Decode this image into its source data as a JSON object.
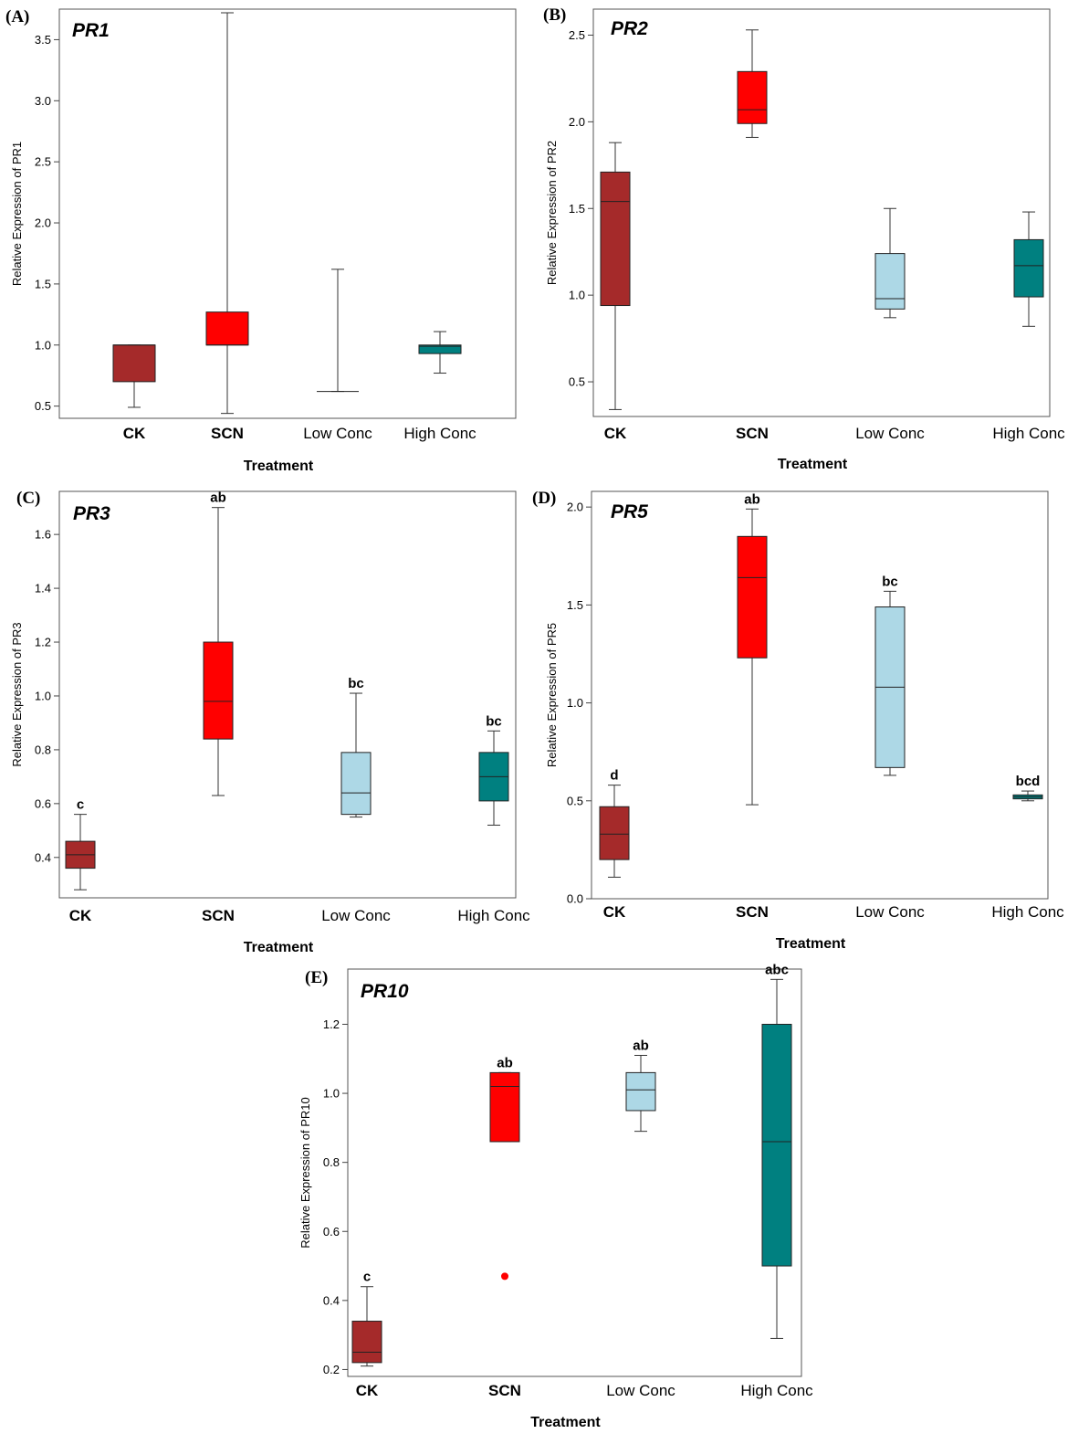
{
  "figure": {
    "xlabel": "Treatment",
    "categories": [
      "CK",
      "SCN",
      "Low Conc",
      "High Conc"
    ],
    "colors": {
      "CK": "#a52a2a",
      "SCN": "#ff0000",
      "Low Conc": "#add8e6",
      "High Conc": "#008080"
    }
  },
  "chart_data": [
    {
      "type": "box",
      "panel": "(A)",
      "title": "PR1",
      "ylabel": "Relative Expression of PR1",
      "xlabel": "Treatment",
      "categories": [
        "CK",
        "SCN",
        "Low Conc",
        "High Conc"
      ],
      "ylim": [
        0.4,
        3.75
      ],
      "yticks": [
        0.5,
        1.0,
        1.5,
        2.0,
        2.5,
        3.0,
        3.5
      ],
      "tick_format": 1,
      "boxes": [
        {
          "category": "CK",
          "min": 0.49,
          "q1": 0.7,
          "median": 1.0,
          "q3": 1.0,
          "max": 1.0
        },
        {
          "category": "SCN",
          "min": 0.44,
          "q1": 1.0,
          "median": 1.0,
          "q3": 1.27,
          "max": 3.72
        },
        {
          "category": "Low Conc",
          "min": 0.62,
          "q1": 0.62,
          "median": 0.62,
          "q3": 0.62,
          "max": 1.62
        },
        {
          "category": "High Conc",
          "min": 0.77,
          "q1": 0.93,
          "median": 0.99,
          "q3": 1.0,
          "max": 1.11
        }
      ],
      "letters": [],
      "outliers": []
    },
    {
      "type": "box",
      "panel": "(B)",
      "title": "PR2",
      "ylabel": "Relative Expression of PR2",
      "xlabel": "Treatment",
      "categories": [
        "CK",
        "SCN",
        "Low Conc",
        "High Conc"
      ],
      "ylim": [
        0.3,
        2.65
      ],
      "yticks": [
        0.5,
        1.0,
        1.5,
        2.0,
        2.5
      ],
      "tick_format": 1,
      "boxes": [
        {
          "category": "CK",
          "min": 0.34,
          "q1": 0.94,
          "median": 1.54,
          "q3": 1.71,
          "max": 1.88
        },
        {
          "category": "SCN",
          "min": 1.91,
          "q1": 1.99,
          "median": 2.07,
          "q3": 2.29,
          "max": 2.53
        },
        {
          "category": "Low Conc",
          "min": 0.87,
          "q1": 0.92,
          "median": 0.98,
          "q3": 1.24,
          "max": 1.5
        },
        {
          "category": "High Conc",
          "min": 0.82,
          "q1": 0.99,
          "median": 1.17,
          "q3": 1.32,
          "max": 1.48
        }
      ],
      "letters": [],
      "outliers": []
    },
    {
      "type": "box",
      "panel": "(C)",
      "title": "PR3",
      "ylabel": "Relative Expression of PR3",
      "xlabel": "Treatment",
      "categories": [
        "CK",
        "SCN",
        "Low Conc",
        "High Conc"
      ],
      "ylim": [
        0.25,
        1.76
      ],
      "yticks": [
        0.4,
        0.6,
        0.8,
        1.0,
        1.2,
        1.4,
        1.6
      ],
      "tick_format": 1,
      "boxes": [
        {
          "category": "CK",
          "min": 0.28,
          "q1": 0.36,
          "median": 0.41,
          "q3": 0.46,
          "max": 0.56
        },
        {
          "category": "SCN",
          "min": 0.63,
          "q1": 0.84,
          "median": 0.98,
          "q3": 1.2,
          "max": 1.7
        },
        {
          "category": "Low Conc",
          "min": 0.55,
          "q1": 0.56,
          "median": 0.64,
          "q3": 0.79,
          "max": 1.01
        },
        {
          "category": "High Conc",
          "min": 0.52,
          "q1": 0.61,
          "median": 0.7,
          "q3": 0.79,
          "max": 0.87
        }
      ],
      "letters": [
        "c",
        "ab",
        "bc",
        "bc"
      ],
      "outliers": []
    },
    {
      "type": "box",
      "panel": "(D)",
      "title": "PR5",
      "ylabel": "Relative Expression of PR5",
      "xlabel": "Treatment",
      "categories": [
        "CK",
        "SCN",
        "Low Conc",
        "High Conc"
      ],
      "ylim": [
        0.0,
        2.08
      ],
      "yticks": [
        0.0,
        0.5,
        1.0,
        1.5,
        2.0
      ],
      "tick_format": 1,
      "boxes": [
        {
          "category": "CK",
          "min": 0.11,
          "q1": 0.2,
          "median": 0.33,
          "q3": 0.47,
          "max": 0.58
        },
        {
          "category": "SCN",
          "min": 0.48,
          "q1": 1.23,
          "median": 1.64,
          "q3": 1.85,
          "max": 1.99
        },
        {
          "category": "Low Conc",
          "min": 0.63,
          "q1": 0.67,
          "median": 1.08,
          "q3": 1.49,
          "max": 1.57
        },
        {
          "category": "High Conc",
          "min": 0.5,
          "q1": 0.51,
          "median": 0.52,
          "q3": 0.53,
          "max": 0.55
        }
      ],
      "letters": [
        "d",
        "ab",
        "bc",
        "bcd"
      ],
      "outliers": []
    },
    {
      "type": "box",
      "panel": "(E)",
      "title": "PR10",
      "ylabel": "Relative Expression of PR10",
      "xlabel": "Treatment",
      "categories": [
        "CK",
        "SCN",
        "Low Conc",
        "High Conc"
      ],
      "ylim": [
        0.18,
        1.36
      ],
      "yticks": [
        0.2,
        0.4,
        0.6,
        0.8,
        1.0,
        1.2
      ],
      "tick_format": 1,
      "boxes": [
        {
          "category": "CK",
          "min": 0.21,
          "q1": 0.22,
          "median": 0.25,
          "q3": 0.34,
          "max": 0.44
        },
        {
          "category": "SCN",
          "min": 0.86,
          "q1": 0.86,
          "median": 1.02,
          "q3": 1.06,
          "max": 1.06
        },
        {
          "category": "Low Conc",
          "min": 0.89,
          "q1": 0.95,
          "median": 1.01,
          "q3": 1.06,
          "max": 1.11
        },
        {
          "category": "High Conc",
          "min": 0.29,
          "q1": 0.5,
          "median": 0.86,
          "q3": 1.2,
          "max": 1.33
        }
      ],
      "letters": [
        "c",
        "ab",
        "ab",
        "abc"
      ],
      "outliers": [
        {
          "category": "SCN",
          "value": 0.47
        }
      ]
    }
  ]
}
